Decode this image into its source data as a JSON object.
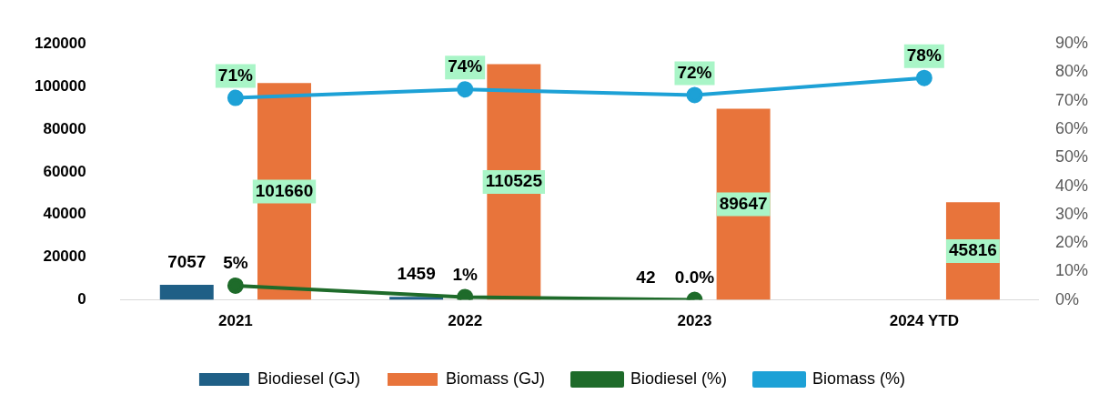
{
  "chart_data": {
    "type": "bar",
    "categories": [
      "2021",
      "2022",
      "2023",
      "2024 YTD"
    ],
    "series": [
      {
        "name": "Biodiesel (GJ)",
        "color": "#1f5f86",
        "values": [
          7057,
          1459,
          42,
          null
        ],
        "value_labels": [
          "7057",
          "1459",
          "42",
          null
        ]
      },
      {
        "name": "Biomass (GJ)",
        "color": "#e8743b",
        "values": [
          101660,
          110525,
          89647,
          45816
        ],
        "value_labels": [
          "101660",
          "110525",
          "89647",
          "45816"
        ]
      },
      {
        "name": "Biodiesel (%)",
        "type": "line",
        "axis": "y2",
        "color": "#1e6b2a",
        "marker": "circle",
        "values": [
          5,
          1,
          0.0,
          null
        ],
        "value_labels": [
          "5%",
          "1%",
          "0.0%",
          null
        ]
      },
      {
        "name": "Biomass (%)",
        "type": "line",
        "axis": "y2",
        "color": "#1da1d6",
        "marker": "circle",
        "values": [
          71,
          74,
          72,
          78
        ],
        "value_labels": [
          "71%",
          "74%",
          "72%",
          "78%"
        ]
      }
    ],
    "ylim": [
      0,
      120000
    ],
    "yticks": [
      0,
      20000,
      40000,
      60000,
      80000,
      100000,
      120000
    ],
    "y2lim": [
      0,
      90
    ],
    "y2ticks": [
      {
        "value": 0,
        "label": "0%"
      },
      {
        "value": 10,
        "label": "10%"
      },
      {
        "value": 20,
        "label": "20%"
      },
      {
        "value": 30,
        "label": "30%"
      },
      {
        "value": 40,
        "label": "40%"
      },
      {
        "value": 50,
        "label": "50%"
      },
      {
        "value": 60,
        "label": "60%"
      },
      {
        "value": 70,
        "label": "70%"
      },
      {
        "value": 80,
        "label": "80%"
      },
      {
        "value": 90,
        "label": "90%"
      }
    ],
    "grid": false,
    "legend": "bottom"
  }
}
